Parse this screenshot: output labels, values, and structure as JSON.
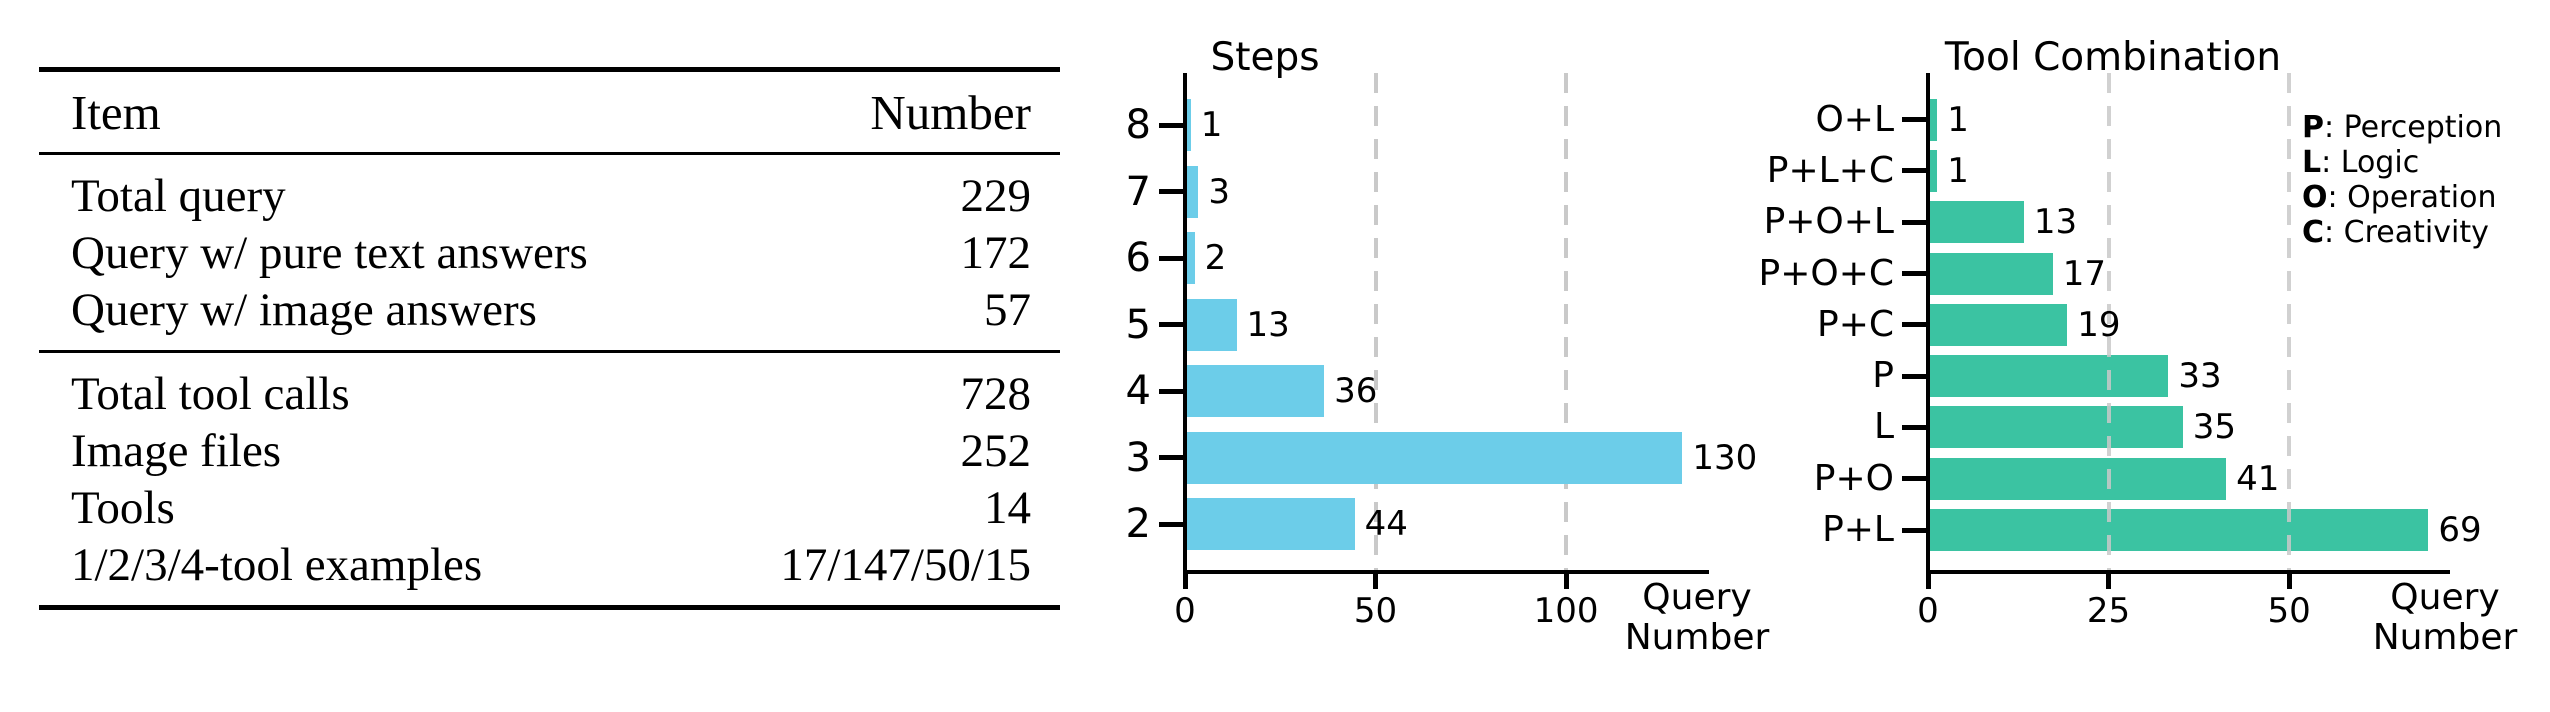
{
  "chart_data": [
    {
      "type": "table",
      "columns": [
        "Item",
        "Number"
      ],
      "groups": [
        [
          {
            "label": "Total query",
            "value": "229"
          },
          {
            "label": "Query w/ pure text answers",
            "value": "172"
          },
          {
            "label": "Query w/ image answers",
            "value": "57"
          }
        ],
        [
          {
            "label": "Total tool calls",
            "value": "728"
          },
          {
            "label": "Image files",
            "value": "252"
          },
          {
            "label": "Tools",
            "value": "14"
          },
          {
            "label": "1/2/3/4-tool examples",
            "value": "17/147/50/15"
          }
        ]
      ]
    },
    {
      "type": "bar",
      "orientation": "horizontal",
      "title": "Steps",
      "xlabel": "Query Number",
      "categories": [
        "8",
        "7",
        "6",
        "5",
        "4",
        "3",
        "2"
      ],
      "values": [
        1,
        3,
        2,
        13,
        36,
        130,
        44
      ],
      "bar_color": "#6CCDE9",
      "xticks": [
        0,
        50,
        100
      ],
      "xlim": [
        0,
        137
      ],
      "gridlines": [
        50,
        100
      ],
      "grid_style": "dashed-gray"
    },
    {
      "type": "bar",
      "orientation": "horizontal",
      "title": "Tool Combination",
      "xlabel": "Query Number",
      "categories": [
        "O+L",
        "P+L+C",
        "P+O+L",
        "P+O+C",
        "P+C",
        "P",
        "L",
        "P+O",
        "P+L"
      ],
      "values": [
        1,
        1,
        13,
        17,
        19,
        33,
        35,
        41,
        69
      ],
      "bar_color": "#3BC3A2",
      "xticks": [
        0,
        25,
        50
      ],
      "xlim": [
        0,
        72
      ],
      "gridlines": [
        25,
        50
      ],
      "grid_style": "dashed-gray",
      "legend": [
        {
          "key": "P",
          "label": "Perception"
        },
        {
          "key": "L",
          "label": "Logic"
        },
        {
          "key": "O",
          "label": "Operation"
        },
        {
          "key": "C",
          "label": "Creativity"
        }
      ],
      "legend_position": "upper-right"
    }
  ]
}
